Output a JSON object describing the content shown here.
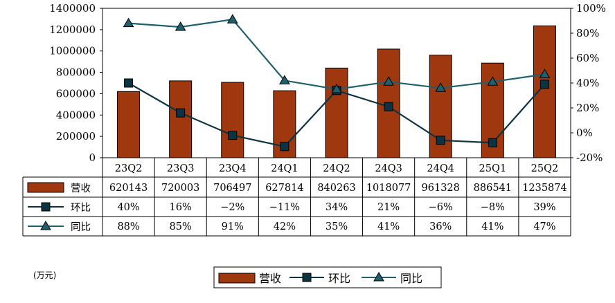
{
  "chart_data": {
    "type": "bar",
    "unit_label": "(万元)",
    "categories": [
      "23Q2",
      "23Q3",
      "23Q4",
      "24Q1",
      "24Q2",
      "24Q3",
      "24Q4",
      "25Q1",
      "25Q2"
    ],
    "y_left_range": [
      0,
      1400000
    ],
    "y_left_ticks": [
      "0",
      "200000",
      "400000",
      "600000",
      "800000",
      "1000000",
      "1200000",
      "1400000"
    ],
    "y_right_range": [
      -20,
      100
    ],
    "y_right_ticks": [
      "-20%",
      "0%",
      "20%",
      "40%",
      "60%",
      "80%",
      "100%"
    ],
    "series": [
      {
        "name": "营收",
        "type": "bar",
        "color": "#a0380f",
        "values": [
          620143,
          720003,
          706497,
          627814,
          840263,
          1018077,
          961328,
          886541,
          1235874
        ],
        "labels": [
          "620143",
          "720003",
          "706497",
          "627814",
          "840263",
          "1018077",
          "961328",
          "886541",
          "1235874"
        ]
      },
      {
        "name": "环比",
        "type": "line",
        "marker": "square",
        "color": "#0c3342",
        "values": [
          40,
          16,
          -2,
          -11,
          34,
          21,
          -6,
          -8,
          39
        ],
        "labels": [
          "40%",
          "16%",
          "−2%",
          "−11%",
          "34%",
          "21%",
          "−6%",
          "−8%",
          "39%"
        ]
      },
      {
        "name": "同比",
        "type": "line",
        "marker": "triangle",
        "color": "#1f5f6e",
        "values": [
          88,
          85,
          91,
          42,
          35,
          41,
          36,
          41,
          47
        ],
        "labels": [
          "88%",
          "85%",
          "91%",
          "42%",
          "35%",
          "41%",
          "36%",
          "41%",
          "47%"
        ]
      }
    ],
    "legend_position": "bottom-center",
    "grid": false
  }
}
